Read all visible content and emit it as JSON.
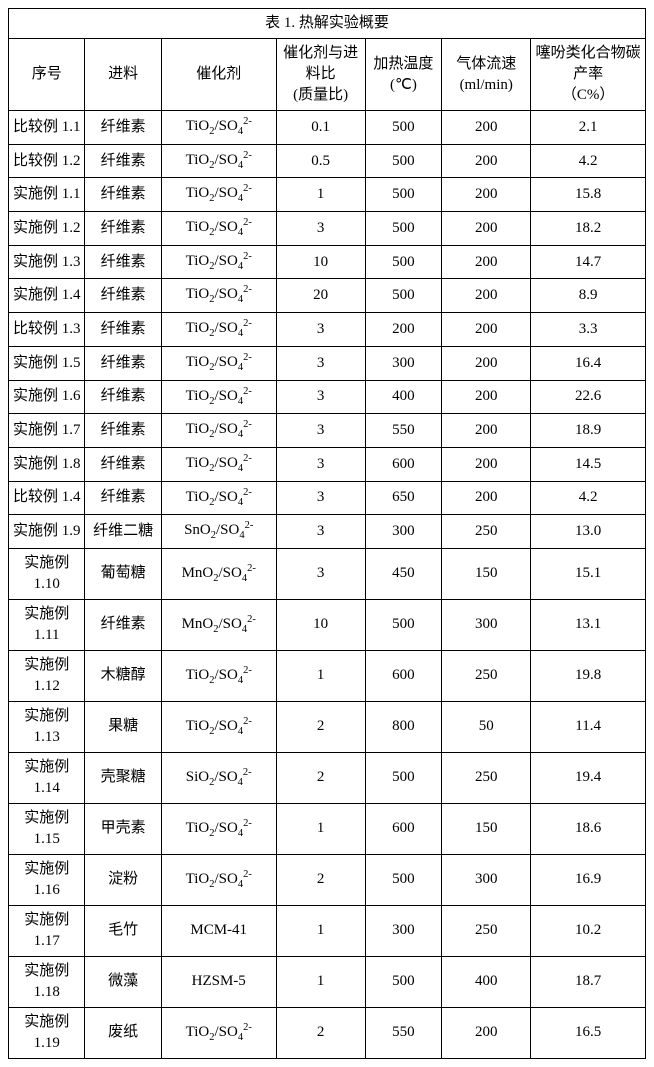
{
  "title": "表 1.  热解实验概要",
  "columns": [
    "序号",
    "进料",
    "催化剂",
    "催化剂与进料比\n(质量比)",
    "加热温度\n(℃)",
    "气体流速\n(ml/min)",
    "噻吩类化合物碳产率\n（C%）"
  ],
  "catalysts": {
    "tio2": "TiO<sub>2</sub>/SO<sub>4</sub><sup>2-</sup>",
    "sno2": "SnO<sub>2</sub>/SO<sub>4</sub><sup>2-</sup>",
    "mno2": "MnO<sub>2</sub>/SO<sub>4</sub><sup>2-</sup>",
    "sio2": "SiO<sub>2</sub>/SO<sub>4</sub><sup>2-</sup>",
    "mcm41": "MCM-41",
    "hzsm5": "HZSM-5"
  },
  "rows": [
    {
      "id": "比较例 1.1",
      "feed": "纤维素",
      "cat": "tio2",
      "ratio": "0.1",
      "temp": "500",
      "flow": "200",
      "yield": "2.1"
    },
    {
      "id": "比较例 1.2",
      "feed": "纤维素",
      "cat": "tio2",
      "ratio": "0.5",
      "temp": "500",
      "flow": "200",
      "yield": "4.2"
    },
    {
      "id": "实施例 1.1",
      "feed": "纤维素",
      "cat": "tio2",
      "ratio": "1",
      "temp": "500",
      "flow": "200",
      "yield": "15.8"
    },
    {
      "id": "实施例 1.2",
      "feed": "纤维素",
      "cat": "tio2",
      "ratio": "3",
      "temp": "500",
      "flow": "200",
      "yield": "18.2"
    },
    {
      "id": "实施例 1.3",
      "feed": "纤维素",
      "cat": "tio2",
      "ratio": "10",
      "temp": "500",
      "flow": "200",
      "yield": "14.7"
    },
    {
      "id": "实施例 1.4",
      "feed": "纤维素",
      "cat": "tio2",
      "ratio": "20",
      "temp": "500",
      "flow": "200",
      "yield": "8.9"
    },
    {
      "id": "比较例 1.3",
      "feed": "纤维素",
      "cat": "tio2",
      "ratio": "3",
      "temp": "200",
      "flow": "200",
      "yield": "3.3"
    },
    {
      "id": "实施例 1.5",
      "feed": "纤维素",
      "cat": "tio2",
      "ratio": "3",
      "temp": "300",
      "flow": "200",
      "yield": "16.4"
    },
    {
      "id": "实施例 1.6",
      "feed": "纤维素",
      "cat": "tio2",
      "ratio": "3",
      "temp": "400",
      "flow": "200",
      "yield": "22.6"
    },
    {
      "id": "实施例 1.7",
      "feed": "纤维素",
      "cat": "tio2",
      "ratio": "3",
      "temp": "550",
      "flow": "200",
      "yield": "18.9"
    },
    {
      "id": "实施例 1.8",
      "feed": "纤维素",
      "cat": "tio2",
      "ratio": "3",
      "temp": "600",
      "flow": "200",
      "yield": "14.5"
    },
    {
      "id": "比较例 1.4",
      "feed": "纤维素",
      "cat": "tio2",
      "ratio": "3",
      "temp": "650",
      "flow": "200",
      "yield": "4.2"
    },
    {
      "id": "实施例 1.9",
      "feed": "纤维二糖",
      "cat": "sno2",
      "ratio": "3",
      "temp": "300",
      "flow": "250",
      "yield": "13.0"
    },
    {
      "id": "实施例 1.10",
      "feed": "葡萄糖",
      "cat": "mno2",
      "ratio": "3",
      "temp": "450",
      "flow": "150",
      "yield": "15.1"
    },
    {
      "id": "实施例 1.11",
      "feed": "纤维素",
      "cat": "mno2",
      "ratio": "10",
      "temp": "500",
      "flow": "300",
      "yield": "13.1"
    },
    {
      "id": "实施例 1.12",
      "feed": "木糖醇",
      "cat": "tio2",
      "ratio": "1",
      "temp": "600",
      "flow": "250",
      "yield": "19.8"
    },
    {
      "id": "实施例 1.13",
      "feed": "果糖",
      "cat": "tio2",
      "ratio": "2",
      "temp": "800",
      "flow": "50",
      "yield": "11.4"
    },
    {
      "id": "实施例 1.14",
      "feed": "壳聚糖",
      "cat": "sio2",
      "ratio": "2",
      "temp": "500",
      "flow": "250",
      "yield": "19.4"
    },
    {
      "id": "实施例 1.15",
      "feed": "甲壳素",
      "cat": "tio2",
      "ratio": "1",
      "temp": "600",
      "flow": "150",
      "yield": "18.6"
    },
    {
      "id": "实施例 1.16",
      "feed": "淀粉",
      "cat": "tio2",
      "ratio": "2",
      "temp": "500",
      "flow": "300",
      "yield": "16.9"
    },
    {
      "id": "实施例 1.17",
      "feed": "毛竹",
      "cat": "mcm41",
      "ratio": "1",
      "temp": "300",
      "flow": "250",
      "yield": "10.2"
    },
    {
      "id": "实施例 1.18",
      "feed": "微藻",
      "cat": "hzsm5",
      "ratio": "1",
      "temp": "500",
      "flow": "400",
      "yield": "18.7"
    },
    {
      "id": "实施例 1.19",
      "feed": "废纸",
      "cat": "tio2",
      "ratio": "2",
      "temp": "550",
      "flow": "200",
      "yield": "16.5"
    }
  ]
}
